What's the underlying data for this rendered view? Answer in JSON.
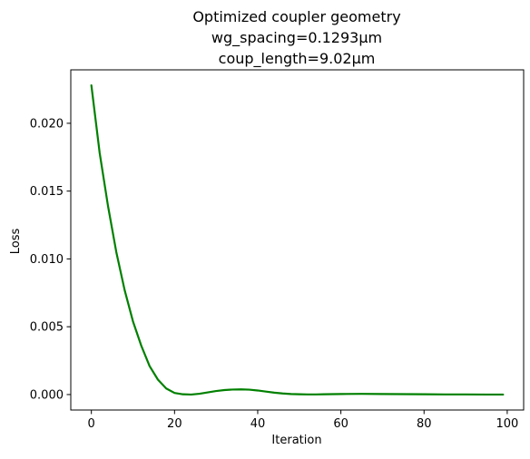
{
  "chart_data": {
    "type": "line",
    "title": [
      "Optimized coupler geometry",
      "wg_spacing=0.1293μm",
      "coup_length=9.02μm"
    ],
    "xlabel": "Iteration",
    "ylabel": "Loss",
    "xlim": [
      -4.95,
      103.95
    ],
    "ylim": [
      -0.00114,
      0.02394
    ],
    "xticks": [
      0,
      20,
      40,
      60,
      80,
      100
    ],
    "xtick_labels": [
      "0",
      "20",
      "40",
      "60",
      "80",
      "100"
    ],
    "yticks": [
      0.0,
      0.005,
      0.01,
      0.015,
      0.02
    ],
    "ytick_labels": [
      "0.000",
      "0.005",
      "0.010",
      "0.015",
      "0.020"
    ],
    "grid": false,
    "series": [
      {
        "color": "#008000",
        "x": [
          0,
          2,
          4,
          6,
          8,
          10,
          12,
          14,
          16,
          18,
          20,
          22,
          24,
          26,
          28,
          30,
          32,
          34,
          36,
          38,
          40,
          42,
          44,
          46,
          48,
          50,
          52,
          54,
          56,
          58,
          60,
          65,
          70,
          75,
          80,
          85,
          90,
          95,
          99
        ],
        "y": [
          0.0228,
          0.0178,
          0.0139,
          0.0105,
          0.0077,
          0.0054,
          0.0036,
          0.0021,
          0.0011,
          0.00045,
          0.00012,
          2e-05,
          0.0,
          6e-05,
          0.00016,
          0.00026,
          0.00033,
          0.00037,
          0.00038,
          0.00036,
          0.0003,
          0.00022,
          0.00014,
          8e-05,
          4e-05,
          2e-05,
          1e-05,
          1e-05,
          2e-05,
          3e-05,
          4e-05,
          5e-05,
          4e-05,
          3e-05,
          2e-05,
          1e-05,
          1e-05,
          0.0,
          0.0
        ]
      }
    ]
  }
}
